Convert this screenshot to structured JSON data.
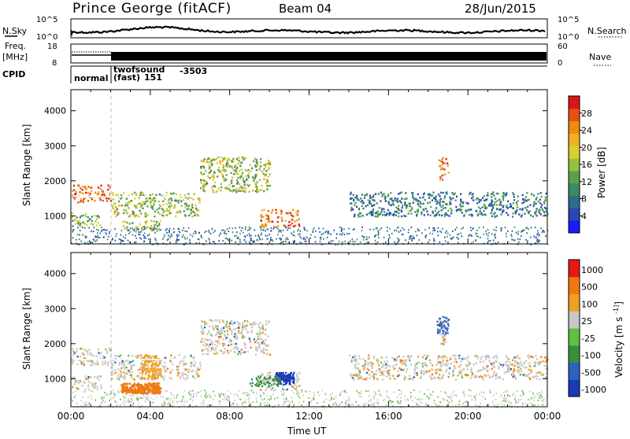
{
  "header": {
    "station": "Prince George (fitACF)",
    "beam": "Beam 04",
    "date": "28/Jun/2015"
  },
  "top_panels": {
    "nsky": {
      "label": "N.Sky",
      "tick_top": "10^5",
      "tick_bottom": "10^0",
      "right_label": "N.Search",
      "right_tick_top": "10^5",
      "right_tick_bottom": "10^0"
    },
    "freq": {
      "label_line1": "Freq.",
      "label_line2": "[MHz]",
      "tick_top": "18",
      "tick_bottom": "8",
      "right_label": "Nave",
      "right_tick_top": "60",
      "right_tick_bottom": "0"
    },
    "cpid": {
      "label": "CPID",
      "segments": [
        {
          "name": "normal",
          "code": ""
        },
        {
          "name": "twofsound",
          "code": "-3503"
        },
        {
          "name": "(fast)",
          "code": "151"
        }
      ]
    }
  },
  "chart_data": [
    {
      "type": "heatmap",
      "panel": "power",
      "ylabel": "Slant Range [km]",
      "yticks": [
        "1000",
        "2000",
        "3000",
        "4000"
      ],
      "ylim": [
        200,
        4600
      ],
      "xlim_hours": [
        0,
        24
      ],
      "colorbar": {
        "label": "Power [dB]",
        "ticks": [
          "4",
          "8",
          "12",
          "16",
          "20",
          "24",
          "28"
        ],
        "range": [
          0,
          32
        ],
        "colors": [
          "#1a1aff",
          "#2848b8",
          "#2e6b8a",
          "#3a8a64",
          "#5ea04a",
          "#98c040",
          "#d8d030",
          "#f0b020",
          "#f08a10",
          "#e85010",
          "#d81818"
        ]
      },
      "regions": [
        {
          "t": [
            0.0,
            2.0
          ],
          "r": [
            1400,
            1900
          ],
          "level": "high"
        },
        {
          "t": [
            0.0,
            1.5
          ],
          "r": [
            700,
            1100
          ],
          "level": "mid"
        },
        {
          "t": [
            2.0,
            6.5
          ],
          "r": [
            1000,
            1700
          ],
          "level": "mid"
        },
        {
          "t": [
            2.5,
            4.5
          ],
          "r": [
            600,
            900
          ],
          "level": "mid"
        },
        {
          "t": [
            6.5,
            10.0
          ],
          "r": [
            1700,
            2700
          ],
          "level": "mid"
        },
        {
          "t": [
            9.5,
            11.5
          ],
          "r": [
            700,
            1200
          ],
          "level": "high"
        },
        {
          "t": [
            14.0,
            24.0
          ],
          "r": [
            1000,
            1700
          ],
          "level": "low"
        },
        {
          "t": [
            18.5,
            19.0
          ],
          "r": [
            2000,
            2700
          ],
          "level": "high"
        }
      ]
    },
    {
      "type": "heatmap",
      "panel": "velocity",
      "ylabel": "Slant Range [km]",
      "yticks": [
        "1000",
        "2000",
        "3000",
        "4000"
      ],
      "ylim": [
        200,
        4600
      ],
      "xlim_hours": [
        0,
        24
      ],
      "xticks": [
        "00:00",
        "04:00",
        "08:00",
        "12:00",
        "16:00",
        "20:00",
        "00:00"
      ],
      "xlabel": "Time UT",
      "colorbar": {
        "label": "Velocity [m s^-1]",
        "ticks": [
          "1000",
          "500",
          "100",
          "25",
          "-25",
          "-100",
          "-500",
          "-1000"
        ],
        "colors": [
          "#1a3ab8",
          "#2e62c0",
          "#3a9040",
          "#60c040",
          "#c8c8c8",
          "#f0a020",
          "#f07810",
          "#e81818"
        ]
      }
    }
  ]
}
